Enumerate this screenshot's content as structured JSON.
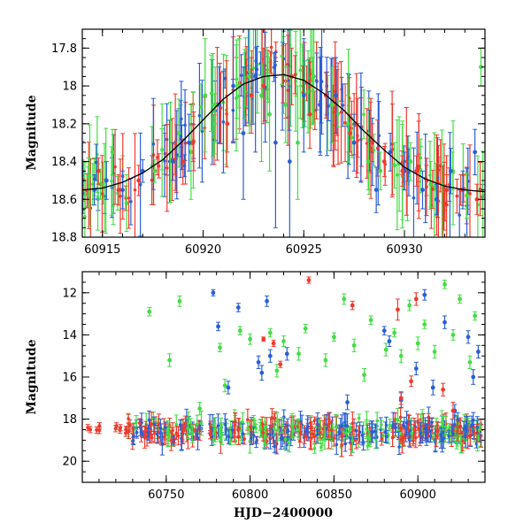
{
  "colors": {
    "green": "#44dd44",
    "blue": "#2a5fd6",
    "red": "#ee3b2e",
    "black": "#000000"
  },
  "chart_data": [
    {
      "type": "scatter",
      "panel": "top",
      "xlabel": "",
      "ylabel": "Magnitude",
      "xlim": [
        60914,
        60934
      ],
      "ylim": [
        18.8,
        17.7
      ],
      "y_inverted": true,
      "xticks": [
        60915,
        60920,
        60925,
        60930
      ],
      "yticks": [
        17.8,
        18,
        18.2,
        18.4,
        18.6,
        18.8
      ],
      "xtick_labels": [
        "60915",
        "60920",
        "60925",
        "60930"
      ],
      "ytick_labels": [
        "17.8",
        "18",
        "18.2",
        "18.4",
        "18.6",
        "18.8"
      ],
      "model_curve": {
        "color": "black",
        "x": [
          60914,
          60915,
          60916,
          60917,
          60918,
          60919,
          60920,
          60921,
          60922,
          60923,
          60924,
          60925,
          60926,
          60927,
          60928,
          60929,
          60930,
          60931,
          60932,
          60933,
          60934
        ],
        "y": [
          18.55,
          18.54,
          18.51,
          18.46,
          18.39,
          18.29,
          18.18,
          18.07,
          17.99,
          17.95,
          17.94,
          17.97,
          18.04,
          18.13,
          18.24,
          18.34,
          18.43,
          18.49,
          18.53,
          18.55,
          18.56
        ]
      },
      "series": [
        {
          "color": "green",
          "x": [
            60914.3,
            60914.9,
            60915.5,
            60916.2,
            60917.6,
            60918.8,
            60919.4,
            60920.1,
            60920.6,
            60921.8,
            60922.3,
            60922.9,
            60923.3,
            60924.1,
            60924.7,
            60925.5,
            60926.4,
            60927.2,
            60928.2,
            60928.8,
            60929.5,
            60930.3,
            60931.3,
            60932.4,
            60933.1,
            60933.8
          ],
          "y": [
            18.48,
            18.52,
            18.35,
            18.62,
            18.45,
            18.25,
            18.35,
            18.05,
            18.1,
            18.0,
            17.95,
            18.05,
            18.15,
            18.1,
            18.3,
            17.95,
            18.1,
            18.2,
            18.4,
            18.45,
            18.42,
            18.4,
            18.52,
            18.45,
            18.58,
            17.9
          ],
          "err": [
            0.1,
            0.08,
            0.12,
            0.15,
            0.06,
            0.18,
            0.25,
            0.3,
            0.2,
            0.25,
            0.3,
            0.35,
            0.3,
            0.2,
            0.3,
            0.25,
            0.2,
            0.15,
            0.15,
            0.1,
            0.12,
            0.1,
            0.12,
            0.1,
            0.12,
            0.1
          ]
        },
        {
          "color": "blue",
          "x": [
            60914.6,
            60915.2,
            60916.0,
            60917.0,
            60918.5,
            60919.3,
            60920.8,
            60921.5,
            60922.0,
            60922.6,
            60923.6,
            60924.3,
            60925.0,
            60925.8,
            60926.6,
            60927.5,
            60928.6,
            60929.3,
            60930.0,
            60930.9,
            60931.6,
            60932.3,
            60932.9,
            60933.5
          ],
          "y": [
            18.55,
            18.5,
            18.55,
            18.45,
            18.4,
            18.3,
            18.1,
            18.0,
            18.25,
            17.95,
            18.3,
            18.4,
            18.05,
            18.1,
            18.05,
            18.3,
            18.55,
            18.35,
            18.45,
            18.55,
            18.6,
            18.45,
            18.55,
            18.35
          ],
          "err": [
            0.08,
            0.1,
            0.1,
            0.06,
            0.1,
            0.15,
            0.2,
            0.3,
            0.35,
            0.4,
            0.45,
            0.4,
            0.3,
            0.25,
            0.2,
            0.15,
            0.12,
            0.1,
            0.1,
            0.1,
            0.08,
            0.12,
            0.1,
            0.12
          ]
        },
        {
          "color": "red",
          "x": [
            60914.0,
            60914.8,
            60915.8,
            60916.8,
            60919.0,
            60919.5,
            60921.2,
            60922.4,
            60923.0,
            60924.4,
            60925.3,
            60926.1,
            60927.3,
            60928.4,
            60929.0,
            60929.9,
            60930.6,
            60931.1,
            60932.1,
            60932.8,
            60933.6
          ],
          "y": [
            18.55,
            18.45,
            18.55,
            18.5,
            18.4,
            18.3,
            18.2,
            18.05,
            18.0,
            17.95,
            18.15,
            18.05,
            18.25,
            18.3,
            18.4,
            18.45,
            18.45,
            18.5,
            18.55,
            18.55,
            18.6
          ],
          "err": [
            0.06,
            0.07,
            0.08,
            0.08,
            0.12,
            0.1,
            0.15,
            0.2,
            0.2,
            0.15,
            0.18,
            0.12,
            0.1,
            0.1,
            0.08,
            0.08,
            0.08,
            0.08,
            0.08,
            0.08,
            0.08
          ]
        }
      ]
    },
    {
      "type": "scatter",
      "panel": "bottom",
      "xlabel": "HJD−2400000",
      "ylabel": "Magnitude",
      "xlim": [
        60700,
        60940
      ],
      "ylim": [
        21,
        11
      ],
      "y_inverted": true,
      "xticks": [
        60750,
        60800,
        60850,
        60900
      ],
      "yticks": [
        12,
        14,
        16,
        18,
        20
      ],
      "xtick_labels": [
        "60750",
        "60800",
        "60850",
        "60900"
      ],
      "ytick_labels": [
        "12",
        "14",
        "16",
        "18",
        "20"
      ],
      "baseline": {
        "mag": 18.6,
        "scatter": 0.35,
        "x_start": 60727,
        "x_end": 60938
      },
      "series": [
        {
          "color": "green",
          "x": [
            60740,
            60752,
            60758,
            60770,
            60782,
            60785,
            60794,
            60800,
            60812,
            60816,
            60820,
            60829,
            60833,
            60845,
            60850,
            60856,
            60862,
            60868,
            60872,
            60881,
            60886,
            60890,
            60895,
            60900,
            60904,
            60910,
            60916,
            60921,
            60925,
            60931,
            60934
          ],
          "y": [
            12.9,
            15.2,
            12.4,
            17.5,
            14.6,
            16.4,
            13.8,
            14.2,
            13.9,
            15.7,
            14.3,
            14.9,
            13.7,
            15.2,
            14.1,
            12.3,
            14.5,
            15.9,
            13.3,
            14.7,
            13.9,
            15.0,
            12.6,
            14.4,
            13.5,
            14.8,
            11.6,
            14.0,
            12.3,
            15.3,
            13.1
          ],
          "err": [
            0.2,
            0.3,
            0.25,
            0.3,
            0.2,
            0.3,
            0.2,
            0.25,
            0.2,
            0.3,
            0.25,
            0.3,
            0.2,
            0.3,
            0.2,
            0.25,
            0.3,
            0.3,
            0.2,
            0.3,
            0.2,
            0.3,
            0.25,
            0.3,
            0.2,
            0.3,
            0.2,
            0.25,
            0.2,
            0.3,
            0.2
          ]
        },
        {
          "color": "blue",
          "x": [
            60778,
            60781,
            60787,
            60793,
            60805,
            60807,
            60810,
            60812,
            60822,
            60858,
            60880,
            60883,
            60890,
            60899,
            60904,
            60909,
            60916,
            60922,
            60930,
            60933,
            60936
          ],
          "y": [
            12.0,
            13.6,
            16.5,
            12.7,
            15.3,
            15.8,
            12.4,
            15.0,
            14.9,
            17.2,
            13.8,
            14.3,
            17.1,
            15.6,
            12.1,
            16.5,
            13.4,
            17.6,
            14.1,
            16.0,
            14.8
          ],
          "err": [
            0.15,
            0.2,
            0.3,
            0.2,
            0.3,
            0.35,
            0.25,
            0.3,
            0.3,
            0.35,
            0.2,
            0.25,
            0.35,
            0.3,
            0.25,
            0.35,
            0.3,
            0.3,
            0.3,
            0.35,
            0.3
          ]
        },
        {
          "color": "red",
          "x": [
            60808,
            60814,
            60818,
            60835,
            60861,
            60888,
            60890,
            60896,
            60899,
            60915,
            60921
          ],
          "y": [
            14.2,
            14.4,
            15.4,
            11.4,
            12.6,
            12.8,
            17.0,
            16.2,
            12.3,
            16.6,
            17.6
          ],
          "err": [
            0.1,
            0.15,
            0.15,
            0.15,
            0.2,
            0.5,
            0.3,
            0.25,
            0.3,
            0.3,
            0.4
          ]
        }
      ]
    }
  ]
}
